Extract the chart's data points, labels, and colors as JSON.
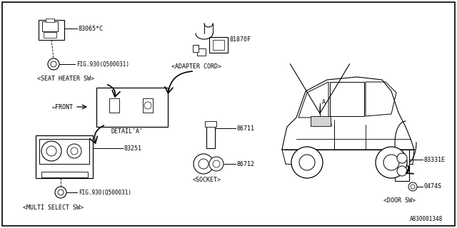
{
  "bg_color": "#ffffff",
  "border_color": "#000000",
  "line_color": "#000000",
  "text_color": "#000000",
  "fig_id": "A830001348",
  "parts": {
    "seat_heater_sw": {
      "id": "83065*C",
      "label": "<SEAT HEATER SW>",
      "fig_ref": "FIG.930(Q500031)"
    },
    "adapter_cord": {
      "id": "81870F",
      "label": "<ADAPTER CORD>"
    },
    "multi_select_sw": {
      "id": "83251",
      "label": "<MULTI SELECT SW>",
      "fig_ref": "FIG.930(Q500031)"
    },
    "socket_top": {
      "id": "86711"
    },
    "socket_bot": {
      "id": "86712",
      "label": "<SOCKET>"
    },
    "door_sw": {
      "id": "83331E",
      "label": "<DOOR SW>"
    },
    "screw": {
      "id": "0474S"
    }
  },
  "detail_label": "DETAIL'A'",
  "front_label": "FRONT"
}
